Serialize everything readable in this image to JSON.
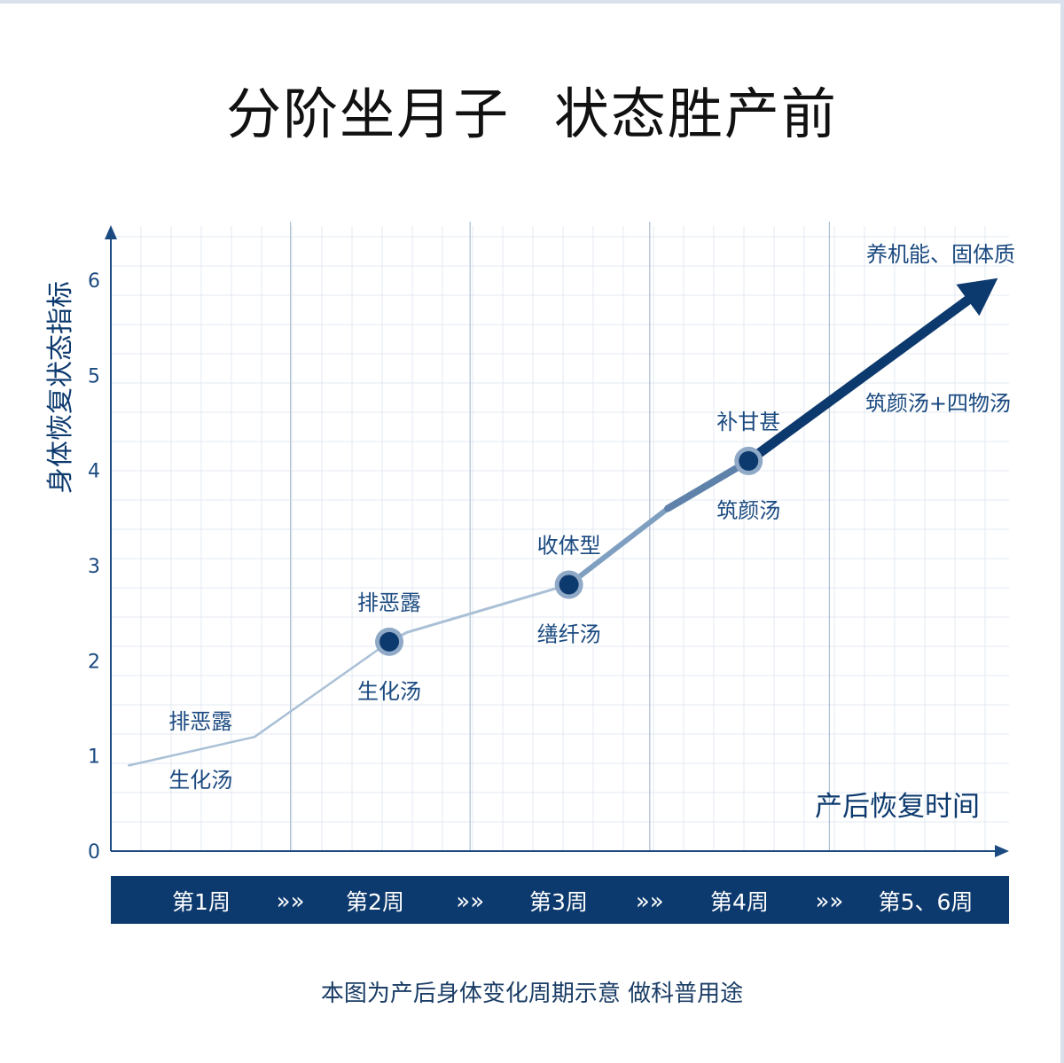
{
  "title_left": "分阶坐月子",
  "title_right": "状态胜产前",
  "footnote": "本图为产后身体变化周期示意 做科普用途",
  "colors": {
    "navy": "#0d3a6e",
    "mid_blue": "#7f9fc1",
    "light_blue": "#aac0d6",
    "grid": "#e3eaf2",
    "axis": "#1b4a80"
  },
  "icons": {
    "separator": "chevron-triple-icon",
    "point": "circle-marker-icon",
    "arrow": "arrow-up-right-icon"
  },
  "chart_data": {
    "type": "line",
    "title": "",
    "ylabel": "身体恢复状态指标",
    "xlabel": "产后恢复时间",
    "ylim": [
      0,
      6.6
    ],
    "xlim": [
      0,
      10
    ],
    "yticks": [
      0,
      1,
      2,
      3,
      4,
      5,
      6
    ],
    "grid": true,
    "series": [
      {
        "points": [
          {
            "x": 0.2,
            "y": 0.9
          },
          {
            "x": 1.6,
            "y": 1.2
          },
          {
            "x": 3.1,
            "y": 2.2
          },
          {
            "x": 3.3,
            "y": 2.3
          },
          {
            "x": 5.1,
            "y": 2.8
          },
          {
            "x": 6.2,
            "y": 3.6
          },
          {
            "x": 7.1,
            "y": 4.1
          },
          {
            "x": 9.7,
            "y": 5.9
          }
        ],
        "markers": [
          {
            "x": 3.1,
            "y": 2.2
          },
          {
            "x": 5.1,
            "y": 2.8
          },
          {
            "x": 7.1,
            "y": 4.1
          }
        ]
      }
    ],
    "periods": [
      {
        "label": "第1周",
        "x_start": 0,
        "x_end": 2
      },
      {
        "label": "第2周",
        "x_start": 2,
        "x_end": 4
      },
      {
        "label": "第3周",
        "x_start": 4,
        "x_end": 6
      },
      {
        "label": "第4周",
        "x_start": 6,
        "x_end": 8
      },
      {
        "label": "第5、6周",
        "x_start": 8,
        "x_end": 10
      }
    ],
    "annotations": [
      {
        "above": "排恶露",
        "below": "生化汤",
        "x": 1.0,
        "y": 1.2
      },
      {
        "above": "排恶露",
        "below": "生化汤",
        "x": 3.1,
        "y": 2.2
      },
      {
        "above": "收体型",
        "below": "缮纤汤",
        "x": 5.1,
        "y": 2.8
      },
      {
        "above": "补甘甚",
        "below": "筑颜汤",
        "x": 7.1,
        "y": 4.1
      },
      {
        "above": "养机能、固体质",
        "below": "筑颜汤+四物汤",
        "x": 9.1,
        "y": 5.7
      }
    ],
    "separator_glyph": "»»"
  }
}
